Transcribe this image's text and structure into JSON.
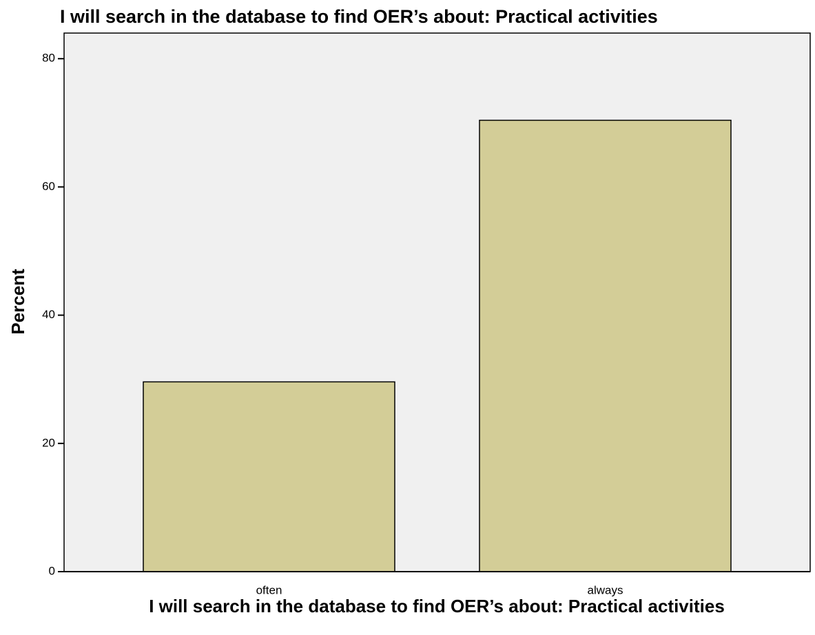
{
  "chart_data": {
    "type": "bar",
    "title": "I will search in the database to find OER’s about: Practical activities",
    "x_label": "I will search in the database to find OER’s about: Practical activities",
    "y_label": "Percent",
    "categories": [
      "often",
      "always"
    ],
    "values": [
      29.6,
      70.4
    ],
    "color": "#d3cd97",
    "ylim": [
      0,
      84
    ],
    "yticks": [
      0,
      20,
      40,
      60,
      80
    ],
    "grid": false
  }
}
